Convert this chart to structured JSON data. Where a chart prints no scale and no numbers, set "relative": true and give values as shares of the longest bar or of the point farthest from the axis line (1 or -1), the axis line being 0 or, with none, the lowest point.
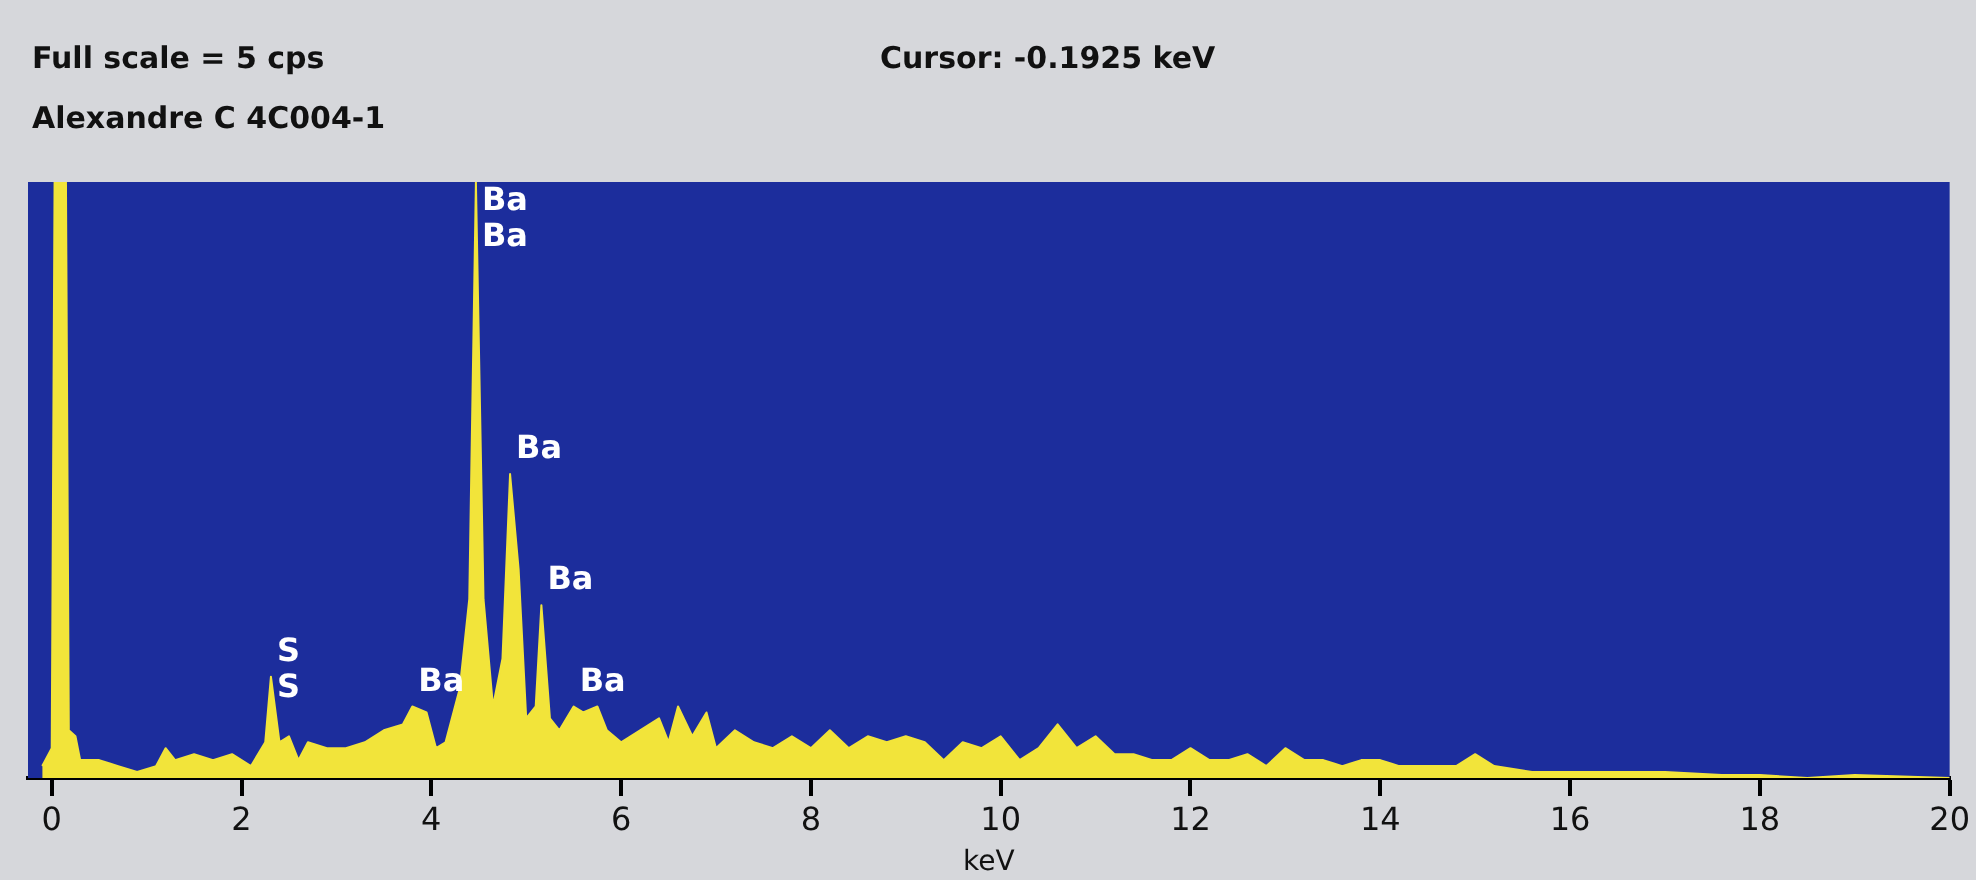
{
  "chart_data": {
    "type": "area",
    "title": "Alexandre C 4C004-1",
    "xlabel": "keV",
    "relative": true,
    "grid": false,
    "legend": false,
    "annotations": [
      "Full scale = 5  cps",
      "Cursor:  -0.1925 keV",
      {
        "text": "Ba",
        "x": 4.47,
        "y": 1.0
      },
      {
        "text": "Ba",
        "x": 4.47,
        "y": 1.0
      },
      {
        "text": "Ba",
        "x": 4.83,
        "y": 0.51
      },
      {
        "text": "Ba",
        "x": 5.16,
        "y": 0.29
      },
      {
        "text": "Ba",
        "x": 5.5,
        "y": 0.12
      },
      {
        "text": "Ba",
        "x": 3.8,
        "y": 0.12
      },
      {
        "text": "S",
        "x": 2.31,
        "y": 0.17
      },
      {
        "text": "S",
        "x": 2.31,
        "y": 0.17
      }
    ],
    "xlim": [
      -0.25,
      20
    ],
    "xticks": [
      0,
      2,
      4,
      6,
      8,
      10,
      12,
      14,
      16,
      18,
      20
    ],
    "series": [
      {
        "color": "#f2e43a",
        "x": [
          -0.1,
          0.0,
          0.03,
          0.15,
          0.18,
          0.25,
          0.3,
          0.5,
          0.7,
          0.9,
          1.1,
          1.2,
          1.3,
          1.5,
          1.7,
          1.9,
          2.1,
          2.25,
          2.31,
          2.4,
          2.5,
          2.6,
          2.7,
          2.9,
          3.1,
          3.3,
          3.5,
          3.7,
          3.8,
          3.95,
          4.05,
          4.15,
          4.3,
          4.4,
          4.47,
          4.55,
          4.65,
          4.75,
          4.83,
          4.92,
          5.0,
          5.1,
          5.16,
          5.25,
          5.35,
          5.5,
          5.6,
          5.75,
          5.85,
          6.0,
          6.2,
          6.4,
          6.5,
          6.6,
          6.75,
          6.9,
          7.0,
          7.2,
          7.4,
          7.6,
          7.8,
          8.0,
          8.2,
          8.4,
          8.6,
          8.8,
          9.0,
          9.2,
          9.4,
          9.6,
          9.8,
          10.0,
          10.2,
          10.4,
          10.6,
          10.8,
          11.0,
          11.2,
          11.4,
          11.6,
          11.8,
          12.0,
          12.2,
          12.4,
          12.6,
          12.8,
          13.0,
          13.2,
          13.4,
          13.6,
          13.8,
          14.0,
          14.2,
          14.4,
          14.6,
          14.8,
          15.0,
          15.2,
          15.6,
          16.0,
          16.4,
          17.0,
          17.6,
          18.0,
          18.5,
          19.0,
          20.0
        ],
        "values": [
          0.02,
          0.05,
          1.0,
          1.0,
          0.08,
          0.07,
          0.03,
          0.03,
          0.02,
          0.01,
          0.02,
          0.05,
          0.03,
          0.04,
          0.03,
          0.04,
          0.02,
          0.06,
          0.17,
          0.06,
          0.07,
          0.03,
          0.06,
          0.05,
          0.05,
          0.06,
          0.08,
          0.09,
          0.12,
          0.11,
          0.05,
          0.06,
          0.15,
          0.3,
          1.0,
          0.3,
          0.12,
          0.2,
          0.51,
          0.35,
          0.1,
          0.12,
          0.29,
          0.1,
          0.08,
          0.12,
          0.11,
          0.12,
          0.08,
          0.06,
          0.08,
          0.1,
          0.06,
          0.12,
          0.07,
          0.11,
          0.05,
          0.08,
          0.06,
          0.05,
          0.07,
          0.05,
          0.08,
          0.05,
          0.07,
          0.06,
          0.07,
          0.06,
          0.03,
          0.06,
          0.05,
          0.07,
          0.03,
          0.05,
          0.09,
          0.05,
          0.07,
          0.04,
          0.04,
          0.03,
          0.03,
          0.05,
          0.03,
          0.03,
          0.04,
          0.02,
          0.05,
          0.03,
          0.03,
          0.02,
          0.03,
          0.03,
          0.02,
          0.02,
          0.02,
          0.02,
          0.04,
          0.02,
          0.01,
          0.01,
          0.01,
          0.01,
          0.005,
          0.005,
          0,
          0.005,
          0
        ]
      }
    ]
  }
}
